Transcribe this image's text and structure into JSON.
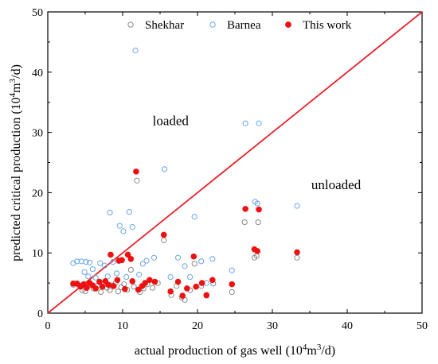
{
  "chart_data": {
    "type": "scatter",
    "xlabel_main": "actual production of gas well (10",
    "xlabel_sup1": "4",
    "xlabel_mid": "m",
    "xlabel_sup2": "3",
    "xlabel_end": "/d)",
    "ylabel_main": "predicted critical production (10",
    "ylabel_sup1": "4",
    "ylabel_mid": "m",
    "ylabel_sup2": "3",
    "ylabel_end": "/d)",
    "xlim": [
      0,
      50
    ],
    "ylim": [
      0,
      50
    ],
    "xticks": [
      "0",
      "10",
      "20",
      "30",
      "40",
      "50"
    ],
    "yticks": [
      "0",
      "10",
      "20",
      "30",
      "40",
      "50"
    ],
    "grid": false,
    "legend_position": "top",
    "annotations": [
      {
        "text": "loaded",
        "x": 14,
        "y": 31.2
      },
      {
        "text": "unloaded",
        "x": 35.2,
        "y": 20.6
      }
    ],
    "reference_line": {
      "x": [
        0,
        50
      ],
      "y": [
        0,
        50
      ],
      "color": "#e8202a"
    },
    "series": [
      {
        "name": "Shekhar",
        "marker": "open-circle",
        "color": "#8a8a8a",
        "points": [
          [
            3.4,
            4.7
          ],
          [
            4.2,
            4.6
          ],
          [
            4.6,
            3.8
          ],
          [
            5.0,
            3.6
          ],
          [
            5.3,
            4.4
          ],
          [
            5.6,
            5.0
          ],
          [
            6.1,
            4.1
          ],
          [
            6.6,
            4.5
          ],
          [
            7.1,
            3.5
          ],
          [
            7.4,
            4.9
          ],
          [
            7.9,
            4.2
          ],
          [
            8.3,
            3.8
          ],
          [
            8.6,
            4.6
          ],
          [
            9.1,
            5.1
          ],
          [
            9.4,
            3.6
          ],
          [
            9.8,
            4.3
          ],
          [
            10.2,
            4.8
          ],
          [
            10.6,
            3.9
          ],
          [
            11.1,
            7.2
          ],
          [
            11.5,
            4.4
          ],
          [
            11.9,
            22.0
          ],
          [
            12.3,
            3.5
          ],
          [
            12.8,
            4.1
          ],
          [
            13.3,
            4.8
          ],
          [
            14.0,
            4.2
          ],
          [
            14.7,
            5.0
          ],
          [
            15.5,
            12.1
          ],
          [
            16.5,
            3.0
          ],
          [
            17.2,
            4.5
          ],
          [
            17.9,
            2.6
          ],
          [
            18.3,
            2.2
          ],
          [
            19.0,
            3.8
          ],
          [
            19.6,
            8.2
          ],
          [
            20.5,
            4.5
          ],
          [
            21.2,
            2.9
          ],
          [
            22.1,
            4.9
          ],
          [
            24.6,
            3.5
          ],
          [
            26.3,
            15.1
          ],
          [
            27.6,
            9.2
          ],
          [
            27.9,
            9.5
          ],
          [
            28.1,
            15.1
          ],
          [
            33.3,
            9.2
          ]
        ]
      },
      {
        "name": "Barnea",
        "marker": "open-circle",
        "color": "#6aa6e8",
        "points": [
          [
            3.4,
            8.3
          ],
          [
            3.9,
            8.6
          ],
          [
            4.5,
            8.6
          ],
          [
            5.1,
            8.5
          ],
          [
            5.6,
            8.4
          ],
          [
            4.9,
            6.8
          ],
          [
            5.4,
            6.1
          ],
          [
            6.0,
            7.3
          ],
          [
            6.4,
            5.9
          ],
          [
            7.0,
            8.3
          ],
          [
            7.6,
            7.9
          ],
          [
            8.0,
            6.1
          ],
          [
            8.3,
            16.7
          ],
          [
            8.7,
            8.5
          ],
          [
            9.2,
            6.6
          ],
          [
            9.6,
            14.5
          ],
          [
            10.1,
            13.6
          ],
          [
            10.5,
            6.0
          ],
          [
            10.9,
            16.8
          ],
          [
            11.3,
            14.3
          ],
          [
            11.7,
            43.6
          ],
          [
            12.2,
            6.4
          ],
          [
            12.7,
            8.2
          ],
          [
            13.2,
            8.7
          ],
          [
            14.2,
            9.2
          ],
          [
            15.6,
            23.9
          ],
          [
            16.4,
            6.0
          ],
          [
            17.4,
            9.2
          ],
          [
            18.3,
            7.8
          ],
          [
            19.0,
            6.0
          ],
          [
            19.6,
            16.0
          ],
          [
            20.5,
            8.6
          ],
          [
            21.2,
            5.0
          ],
          [
            22.0,
            9.0
          ],
          [
            24.6,
            7.1
          ],
          [
            26.4,
            31.5
          ],
          [
            28.2,
            31.5
          ],
          [
            27.7,
            18.5
          ],
          [
            28.0,
            18.2
          ],
          [
            33.3,
            17.8
          ]
        ]
      },
      {
        "name": "This work",
        "marker": "filled-circle",
        "color": "#ee1111",
        "points": [
          [
            3.4,
            4.9
          ],
          [
            3.9,
            4.9
          ],
          [
            4.4,
            4.4
          ],
          [
            4.8,
            4.8
          ],
          [
            5.2,
            4.2
          ],
          [
            5.6,
            5.0
          ],
          [
            6.0,
            4.6
          ],
          [
            6.4,
            4.1
          ],
          [
            6.9,
            5.2
          ],
          [
            7.3,
            4.4
          ],
          [
            7.7,
            5.3
          ],
          [
            8.1,
            4.7
          ],
          [
            8.4,
            9.7
          ],
          [
            8.8,
            4.5
          ],
          [
            9.3,
            5.5
          ],
          [
            9.5,
            8.7
          ],
          [
            9.9,
            8.8
          ],
          [
            10.3,
            4.0
          ],
          [
            10.7,
            9.7
          ],
          [
            11.1,
            9.0
          ],
          [
            11.3,
            5.3
          ],
          [
            11.8,
            23.5
          ],
          [
            12.1,
            3.9
          ],
          [
            12.6,
            4.5
          ],
          [
            13.0,
            5.0
          ],
          [
            13.6,
            5.5
          ],
          [
            14.3,
            5.2
          ],
          [
            15.5,
            13.0
          ],
          [
            16.4,
            3.6
          ],
          [
            17.4,
            5.2
          ],
          [
            18.0,
            2.9
          ],
          [
            18.6,
            4.1
          ],
          [
            19.5,
            9.4
          ],
          [
            19.8,
            4.4
          ],
          [
            20.6,
            5.0
          ],
          [
            21.2,
            3.0
          ],
          [
            22.0,
            5.5
          ],
          [
            24.6,
            4.8
          ],
          [
            26.4,
            17.3
          ],
          [
            27.6,
            10.6
          ],
          [
            28.0,
            10.3
          ],
          [
            28.2,
            17.2
          ],
          [
            33.3,
            10.1
          ]
        ]
      }
    ]
  }
}
